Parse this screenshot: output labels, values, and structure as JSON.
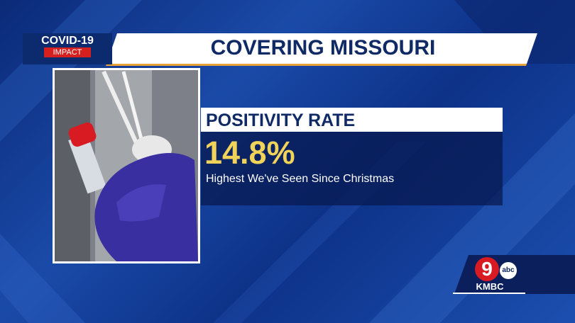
{
  "badge": {
    "title": "COVID-19",
    "subtitle": "IMPACT"
  },
  "header": {
    "title": "COVERING MISSOURI"
  },
  "stat": {
    "label": "POSITIVITY RATE",
    "value": "14.8%",
    "caption": "Highest We've Seen Since Christmas"
  },
  "logo": {
    "number": "9",
    "network": "abc",
    "station": "KMBC"
  }
}
